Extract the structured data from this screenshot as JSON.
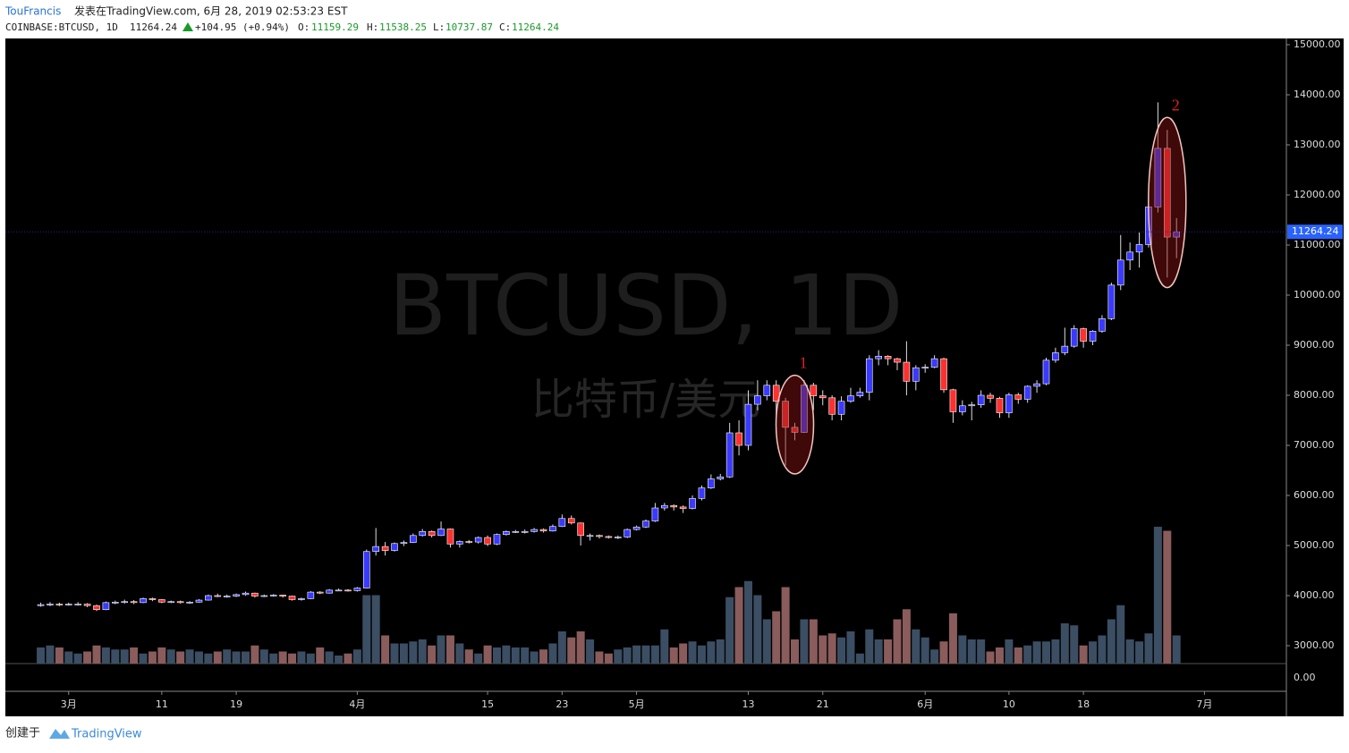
{
  "header": {
    "author": "TouFrancis",
    "published": "发表在TradingView.com, 6月 28, 2019 02:53:23 EST",
    "symbol": "COINBASE:BTCUSD, 1D",
    "last": 11264.24,
    "change": "+104.95 (+0.94%)",
    "o_label": "O:",
    "open": 11159.29,
    "h_label": "H:",
    "high": 11538.25,
    "l_label": "L:",
    "low": 10737.87,
    "c_label": "C:",
    "close": 11264.24
  },
  "chart_data": {
    "type": "candlestick",
    "watermark": "BTCUSD, 1D",
    "watermark_sub": "比特币/美元",
    "up_color": "#3a3aff",
    "down_color": "#ff3030",
    "volume_up_color": "#3b4e63",
    "volume_down_color": "#8a5c5c",
    "ylim": [
      2643,
      15125
    ],
    "yticks": [
      {
        "value": 3000,
        "label": "3000.00"
      },
      {
        "value": 4000,
        "label": "4000.00"
      },
      {
        "value": 5000,
        "label": "5000.00"
      },
      {
        "value": 6000,
        "label": "6000.00"
      },
      {
        "value": 7000,
        "label": "7000.00"
      },
      {
        "value": 8000,
        "label": "8000.00"
      },
      {
        "value": 9000,
        "label": "9000.00"
      },
      {
        "value": 10000,
        "label": "10000.00"
      },
      {
        "value": 11000,
        "label": "11000.00"
      },
      {
        "value": 12000,
        "label": "12000.00"
      },
      {
        "value": 13000,
        "label": "13000.00"
      },
      {
        "value": 14000,
        "label": "14000.00"
      },
      {
        "value": 15000,
        "label": "15000.00"
      }
    ],
    "pane2_yticks": [
      {
        "value": 0,
        "label": "0.00"
      }
    ],
    "xlim": [
      -3.8,
      133.8
    ],
    "xticks": [
      {
        "value": 3,
        "label": "3月"
      },
      {
        "value": 13,
        "label": "11"
      },
      {
        "value": 21,
        "label": "19"
      },
      {
        "value": 34,
        "label": "4月"
      },
      {
        "value": 48,
        "label": "15"
      },
      {
        "value": 56,
        "label": "23"
      },
      {
        "value": 64,
        "label": "5月"
      },
      {
        "value": 76,
        "label": "13"
      },
      {
        "value": 84,
        "label": "21"
      },
      {
        "value": 95,
        "label": "6月"
      },
      {
        "value": 104,
        "label": "10"
      },
      {
        "value": 112,
        "label": "18"
      },
      {
        "value": 125,
        "label": "7月"
      }
    ],
    "open": [
      3800,
      3820,
      3830,
      3820,
      3830,
      3830,
      3800,
      3720,
      3860,
      3870,
      3880,
      3860,
      3940,
      3920,
      3870,
      3880,
      3860,
      3870,
      3910,
      4000,
      3990,
      3990,
      4020,
      4050,
      3990,
      4000,
      4010,
      3990,
      3920,
      3940,
      4070,
      4050,
      4110,
      4110,
      4100,
      4150,
      4880,
      4980,
      4900,
      5040,
      5060,
      5200,
      5280,
      5200,
      5330,
      5030,
      5080,
      5070,
      5160,
      5030,
      5220,
      5280,
      5280,
      5280,
      5320,
      5290,
      5380,
      5540,
      5450,
      5200,
      5200,
      5180,
      5160,
      5170,
      5320,
      5370,
      5490,
      5750,
      5800,
      5770,
      5740,
      5940,
      6150,
      6330,
      6370,
      7250,
      7000,
      7820,
      7990,
      8200,
      7880,
      7360,
      7260,
      8200,
      7990,
      7950,
      7620,
      7880,
      7990,
      8060,
      8730,
      8780,
      8730,
      8660,
      8280,
      8550,
      8560,
      8730,
      8110,
      7670,
      7790,
      7810,
      8000,
      7940,
      7650,
      8010,
      7920,
      8180,
      8230,
      8700,
      8850,
      8980,
      9330,
      9080,
      9280,
      9530,
      10200,
      10700,
      10860,
      11010,
      11760,
      12930,
      11159.29
    ],
    "high": [
      3860,
      3870,
      3860,
      3860,
      3870,
      3850,
      3820,
      3880,
      3900,
      3920,
      3910,
      3960,
      3960,
      3930,
      3900,
      3900,
      3890,
      3930,
      4020,
      4040,
      4020,
      4040,
      4080,
      4060,
      4020,
      4030,
      4020,
      4000,
      3960,
      4090,
      4090,
      4130,
      4140,
      4130,
      4170,
      4920,
      5350,
      5070,
      5060,
      5100,
      5240,
      5330,
      5300,
      5480,
      5340,
      5100,
      5110,
      5180,
      5200,
      5240,
      5300,
      5310,
      5320,
      5350,
      5340,
      5420,
      5620,
      5600,
      5460,
      5240,
      5220,
      5200,
      5200,
      5340,
      5400,
      5520,
      5850,
      5850,
      5820,
      5800,
      6000,
      6200,
      6420,
      6430,
      7450,
      7500,
      8100,
      8300,
      8300,
      8300,
      7950,
      7450,
      8300,
      8250,
      8100,
      8000,
      7980,
      8150,
      8150,
      8800,
      8900,
      8800,
      8750,
      9080,
      8600,
      8620,
      8800,
      8750,
      8130,
      7900,
      7870,
      8100,
      8050,
      7970,
      8050,
      8050,
      8200,
      8300,
      8750,
      8950,
      9350,
      9400,
      9350,
      9300,
      9600,
      10250,
      11200,
      11050,
      11250,
      11800,
      13850,
      13300,
      11538.25
    ],
    "low": [
      3780,
      3790,
      3790,
      3800,
      3800,
      3770,
      3690,
      3710,
      3830,
      3840,
      3830,
      3850,
      3890,
      3850,
      3850,
      3840,
      3840,
      3860,
      3900,
      3970,
      3960,
      3970,
      4000,
      3960,
      3970,
      3980,
      3960,
      3900,
      3900,
      3930,
      4030,
      4040,
      4090,
      4080,
      4080,
      4140,
      4800,
      4800,
      4880,
      4990,
      5050,
      5180,
      5160,
      5190,
      4960,
      4960,
      5040,
      5040,
      4990,
      5010,
      5200,
      5250,
      5240,
      5260,
      5260,
      5280,
      5370,
      5420,
      5000,
      5100,
      5140,
      5140,
      5130,
      5150,
      5300,
      5350,
      5470,
      5700,
      5700,
      5650,
      5720,
      5900,
      6130,
      6300,
      6350,
      6800,
      6900,
      7700,
      7900,
      7600,
      6600,
      7100,
      7250,
      7700,
      7800,
      7500,
      7500,
      7850,
      7950,
      7900,
      8600,
      8600,
      8500,
      8000,
      8100,
      8450,
      8540,
      8050,
      7450,
      7600,
      7500,
      7750,
      7850,
      7550,
      7550,
      7830,
      7850,
      8050,
      8200,
      8650,
      8800,
      8950,
      8950,
      9000,
      9250,
      9500,
      10100,
      10500,
      10550,
      10950,
      11650,
      10350,
      10737.87
    ],
    "close": [
      3820,
      3830,
      3820,
      3830,
      3830,
      3800,
      3720,
      3860,
      3870,
      3880,
      3860,
      3940,
      3920,
      3870,
      3880,
      3860,
      3870,
      3910,
      4000,
      3990,
      3990,
      4020,
      4050,
      3990,
      4000,
      4010,
      3990,
      3920,
      3940,
      4070,
      4050,
      4110,
      4110,
      4100,
      4150,
      4880,
      4980,
      4900,
      5040,
      5060,
      5200,
      5280,
      5200,
      5330,
      5030,
      5080,
      5070,
      5160,
      5030,
      5220,
      5280,
      5280,
      5280,
      5320,
      5290,
      5380,
      5540,
      5450,
      5200,
      5200,
      5180,
      5160,
      5170,
      5320,
      5370,
      5490,
      5750,
      5800,
      5770,
      5740,
      5940,
      6150,
      6330,
      6370,
      7250,
      7000,
      7820,
      7990,
      8200,
      7880,
      7360,
      7260,
      8200,
      7990,
      7950,
      7620,
      7880,
      7990,
      8060,
      8730,
      8780,
      8730,
      8660,
      8280,
      8550,
      8560,
      8730,
      8110,
      7670,
      7790,
      7810,
      8000,
      7940,
      7650,
      8010,
      7920,
      8180,
      8230,
      8700,
      8850,
      8980,
      9330,
      9080,
      9280,
      9530,
      10200,
      10700,
      10860,
      11010,
      11760,
      12930,
      11159.29,
      11264.24
    ],
    "volume": [
      8000,
      9000,
      8000,
      6000,
      5000,
      6000,
      9000,
      8000,
      7000,
      7000,
      8000,
      5000,
      6000,
      8000,
      7000,
      6000,
      7000,
      6000,
      5000,
      6000,
      7000,
      6000,
      6000,
      9000,
      7000,
      5000,
      6000,
      5000,
      6000,
      5000,
      8000,
      6000,
      4000,
      5000,
      7000,
      34000,
      34000,
      14000,
      10000,
      10000,
      11000,
      12000,
      9000,
      14000,
      14000,
      10000,
      7000,
      5000,
      9000,
      8000,
      9000,
      8000,
      8000,
      6000,
      7000,
      10000,
      16000,
      13000,
      16000,
      12000,
      6000,
      5000,
      7000,
      8000,
      9000,
      9000,
      9000,
      17000,
      8000,
      10000,
      11000,
      9000,
      11000,
      12000,
      33000,
      38000,
      41000,
      34000,
      22000,
      26000,
      38000,
      12000,
      22000,
      22000,
      14000,
      15000,
      13000,
      16000,
      5000,
      17000,
      12000,
      12000,
      22000,
      27000,
      17000,
      13000,
      7000,
      11000,
      25000,
      14000,
      12000,
      12000,
      6000,
      8000,
      12000,
      8000,
      9000,
      11000,
      11000,
      12000,
      20000,
      19000,
      9000,
      11000,
      14000,
      22000,
      29000,
      12000,
      11000,
      15000,
      68000,
      66000,
      14000
    ],
    "volume_lim": [
      0,
      80000
    ],
    "annotations": [
      {
        "label": "1",
        "index": 81,
        "low": 6430,
        "high": 8400
      },
      {
        "label": "2",
        "index": 121,
        "low": 10150,
        "high": 13550
      }
    ]
  },
  "footer": {
    "created": "创建于",
    "brand": "TradingView"
  }
}
